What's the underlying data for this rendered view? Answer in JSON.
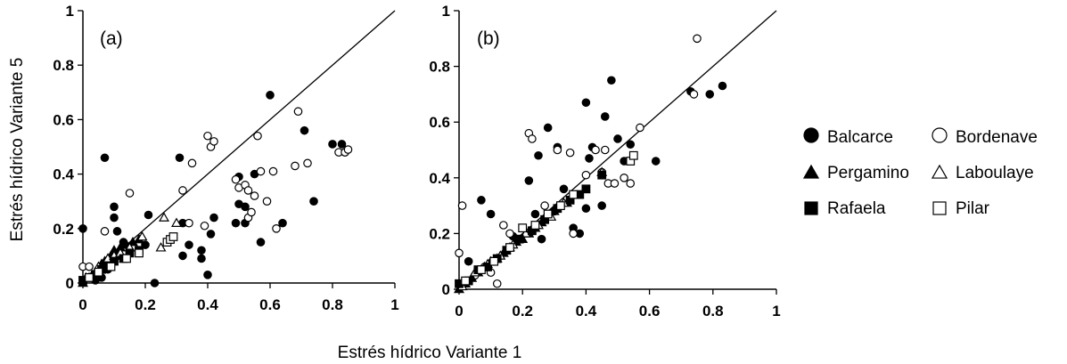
{
  "figure": {
    "ylabel": "Estrés hídrico Variante  5",
    "xlabel": "Estrés hídrico Variante  1"
  },
  "legend": [
    {
      "key": "balcarce",
      "label": "Balcarce",
      "marker": "circle",
      "filled": true
    },
    {
      "key": "bordenave",
      "label": "Bordenave",
      "marker": "circle",
      "filled": false
    },
    {
      "key": "pergamino",
      "label": "Pergamino",
      "marker": "triangle",
      "filled": true
    },
    {
      "key": "laboulaye",
      "label": "Laboulaye",
      "marker": "triangle",
      "filled": false
    },
    {
      "key": "rafaela",
      "label": "Rafaela",
      "marker": "square",
      "filled": true
    },
    {
      "key": "pilar",
      "label": "Pilar",
      "marker": "square",
      "filled": false
    }
  ],
  "chart_data": [
    {
      "type": "scatter",
      "panel_label": "(a)",
      "xlim": [
        0,
        1
      ],
      "ylim": [
        0,
        1
      ],
      "xticks": [
        "0",
        "0.2",
        "0.4",
        "0.6",
        "0.8",
        "1"
      ],
      "yticks": [
        "0",
        "0.2",
        "0.4",
        "0.6",
        "0.8",
        "1"
      ],
      "reference_line": "1:1",
      "grid": false,
      "series": [
        {
          "name": "Balcarce",
          "points": [
            [
              0.0,
              0.2
            ],
            [
              0.07,
              0.46
            ],
            [
              0.1,
              0.28
            ],
            [
              0.1,
              0.24
            ],
            [
              0.11,
              0.19
            ],
            [
              0.11,
              0.1
            ],
            [
              0.13,
              0.15
            ],
            [
              0.2,
              0.14
            ],
            [
              0.21,
              0.25
            ],
            [
              0.23,
              0.0
            ],
            [
              0.31,
              0.46
            ],
            [
              0.32,
              0.22
            ],
            [
              0.32,
              0.1
            ],
            [
              0.34,
              0.14
            ],
            [
              0.38,
              0.09
            ],
            [
              0.38,
              0.12
            ],
            [
              0.4,
              0.03
            ],
            [
              0.41,
              0.18
            ],
            [
              0.42,
              0.24
            ],
            [
              0.49,
              0.22
            ],
            [
              0.5,
              0.39
            ],
            [
              0.5,
              0.29
            ],
            [
              0.52,
              0.28
            ],
            [
              0.52,
              0.22
            ],
            [
              0.55,
              0.4
            ],
            [
              0.57,
              0.15
            ],
            [
              0.6,
              0.69
            ],
            [
              0.64,
              0.22
            ],
            [
              0.71,
              0.56
            ],
            [
              0.74,
              0.3
            ],
            [
              0.8,
              0.51
            ],
            [
              0.83,
              0.51
            ],
            [
              0.84,
              0.48
            ],
            [
              0.06,
              0.02
            ],
            [
              0.08,
              0.05
            ],
            [
              0.04,
              0.01
            ]
          ]
        },
        {
          "name": "Bordenave",
          "points": [
            [
              0.0,
              0.06
            ],
            [
              0.02,
              0.06
            ],
            [
              0.07,
              0.19
            ],
            [
              0.15,
              0.33
            ],
            [
              0.32,
              0.34
            ],
            [
              0.34,
              0.22
            ],
            [
              0.35,
              0.44
            ],
            [
              0.39,
              0.21
            ],
            [
              0.4,
              0.54
            ],
            [
              0.41,
              0.5
            ],
            [
              0.42,
              0.52
            ],
            [
              0.49,
              0.38
            ],
            [
              0.5,
              0.35
            ],
            [
              0.52,
              0.36
            ],
            [
              0.53,
              0.24
            ],
            [
              0.53,
              0.34
            ],
            [
              0.54,
              0.26
            ],
            [
              0.55,
              0.32
            ],
            [
              0.56,
              0.54
            ],
            [
              0.57,
              0.41
            ],
            [
              0.59,
              0.3
            ],
            [
              0.61,
              0.41
            ],
            [
              0.62,
              0.2
            ],
            [
              0.68,
              0.43
            ],
            [
              0.69,
              0.63
            ],
            [
              0.72,
              0.44
            ],
            [
              0.82,
              0.48
            ],
            [
              0.84,
              0.48
            ],
            [
              0.85,
              0.49
            ]
          ]
        },
        {
          "name": "Pergamino",
          "points": [
            [
              0.0,
              0.0
            ],
            [
              0.02,
              0.02
            ],
            [
              0.03,
              0.03
            ],
            [
              0.04,
              0.04
            ],
            [
              0.05,
              0.05
            ],
            [
              0.06,
              0.07
            ],
            [
              0.07,
              0.08
            ],
            [
              0.09,
              0.1
            ],
            [
              0.1,
              0.12
            ],
            [
              0.12,
              0.13
            ],
            [
              0.14,
              0.14
            ],
            [
              0.16,
              0.15
            ],
            [
              0.18,
              0.16
            ]
          ]
        },
        {
          "name": "Laboulaye",
          "points": [
            [
              0.01,
              0.02
            ],
            [
              0.05,
              0.06
            ],
            [
              0.08,
              0.09
            ],
            [
              0.1,
              0.1
            ],
            [
              0.12,
              0.11
            ],
            [
              0.15,
              0.13
            ],
            [
              0.19,
              0.17
            ],
            [
              0.25,
              0.13
            ],
            [
              0.26,
              0.24
            ],
            [
              0.3,
              0.22
            ]
          ]
        },
        {
          "name": "Rafaela",
          "points": [
            [
              0.0,
              0.01
            ],
            [
              0.02,
              0.02
            ],
            [
              0.04,
              0.03
            ],
            [
              0.06,
              0.05
            ],
            [
              0.08,
              0.06
            ],
            [
              0.1,
              0.08
            ],
            [
              0.13,
              0.09
            ],
            [
              0.15,
              0.11
            ],
            [
              0.18,
              0.12
            ]
          ]
        },
        {
          "name": "Pilar",
          "points": [
            [
              0.02,
              0.02
            ],
            [
              0.05,
              0.04
            ],
            [
              0.09,
              0.06
            ],
            [
              0.14,
              0.09
            ],
            [
              0.18,
              0.11
            ],
            [
              0.27,
              0.15
            ],
            [
              0.28,
              0.16
            ],
            [
              0.29,
              0.17
            ]
          ]
        }
      ]
    },
    {
      "type": "scatter",
      "panel_label": "(b)",
      "xlim": [
        0,
        1
      ],
      "ylim": [
        0,
        1
      ],
      "xticks": [
        "0",
        "0.2",
        "0.4",
        "0.6",
        "0.8",
        "1"
      ],
      "yticks": [
        "0",
        "0.2",
        "0.4",
        "0.6",
        "0.8",
        "1"
      ],
      "reference_line": "1:1",
      "grid": false,
      "series": [
        {
          "name": "Balcarce",
          "points": [
            [
              0.03,
              0.1
            ],
            [
              0.07,
              0.32
            ],
            [
              0.1,
              0.27
            ],
            [
              0.17,
              0.19
            ],
            [
              0.22,
              0.39
            ],
            [
              0.24,
              0.27
            ],
            [
              0.25,
              0.48
            ],
            [
              0.26,
              0.18
            ],
            [
              0.28,
              0.58
            ],
            [
              0.3,
              0.28
            ],
            [
              0.31,
              0.51
            ],
            [
              0.33,
              0.36
            ],
            [
              0.36,
              0.22
            ],
            [
              0.38,
              0.2
            ],
            [
              0.4,
              0.29
            ],
            [
              0.41,
              0.47
            ],
            [
              0.4,
              0.67
            ],
            [
              0.42,
              0.51
            ],
            [
              0.45,
              0.3
            ],
            [
              0.46,
              0.62
            ],
            [
              0.48,
              0.75
            ],
            [
              0.5,
              0.54
            ],
            [
              0.52,
              0.46
            ],
            [
              0.54,
              0.52
            ],
            [
              0.55,
              0.48
            ],
            [
              0.62,
              0.46
            ],
            [
              0.73,
              0.71
            ],
            [
              0.79,
              0.7
            ],
            [
              0.83,
              0.73
            ]
          ]
        },
        {
          "name": "Bordenave",
          "points": [
            [
              0.0,
              0.13
            ],
            [
              0.01,
              0.3
            ],
            [
              0.05,
              0.05
            ],
            [
              0.08,
              0.08
            ],
            [
              0.1,
              0.06
            ],
            [
              0.12,
              0.02
            ],
            [
              0.14,
              0.23
            ],
            [
              0.16,
              0.2
            ],
            [
              0.22,
              0.56
            ],
            [
              0.23,
              0.54
            ],
            [
              0.27,
              0.3
            ],
            [
              0.31,
              0.5
            ],
            [
              0.35,
              0.49
            ],
            [
              0.36,
              0.2
            ],
            [
              0.4,
              0.41
            ],
            [
              0.43,
              0.5
            ],
            [
              0.45,
              0.42
            ],
            [
              0.46,
              0.5
            ],
            [
              0.47,
              0.38
            ],
            [
              0.49,
              0.38
            ],
            [
              0.52,
              0.4
            ],
            [
              0.54,
              0.38
            ],
            [
              0.57,
              0.58
            ],
            [
              0.74,
              0.7
            ],
            [
              0.75,
              0.9
            ]
          ]
        },
        {
          "name": "Pergamino",
          "points": [
            [
              0.0,
              0.0
            ],
            [
              0.02,
              0.02
            ],
            [
              0.04,
              0.04
            ],
            [
              0.06,
              0.06
            ],
            [
              0.08,
              0.08
            ],
            [
              0.1,
              0.1
            ],
            [
              0.12,
              0.11
            ],
            [
              0.14,
              0.13
            ],
            [
              0.16,
              0.15
            ],
            [
              0.18,
              0.17
            ],
            [
              0.2,
              0.18
            ],
            [
              0.22,
              0.2
            ],
            [
              0.24,
              0.22
            ],
            [
              0.26,
              0.24
            ],
            [
              0.3,
              0.28
            ],
            [
              0.34,
              0.31
            ]
          ]
        },
        {
          "name": "Laboulaye",
          "points": [
            [
              0.01,
              0.01
            ],
            [
              0.05,
              0.06
            ],
            [
              0.09,
              0.09
            ],
            [
              0.13,
              0.12
            ],
            [
              0.17,
              0.16
            ],
            [
              0.21,
              0.2
            ],
            [
              0.25,
              0.23
            ],
            [
              0.29,
              0.26
            ],
            [
              0.33,
              0.31
            ],
            [
              0.45,
              0.42
            ]
          ]
        },
        {
          "name": "Rafaela",
          "points": [
            [
              0.0,
              0.02
            ],
            [
              0.03,
              0.03
            ],
            [
              0.06,
              0.07
            ],
            [
              0.09,
              0.08
            ],
            [
              0.12,
              0.11
            ],
            [
              0.15,
              0.14
            ],
            [
              0.19,
              0.18
            ],
            [
              0.23,
              0.21
            ],
            [
              0.27,
              0.25
            ],
            [
              0.31,
              0.29
            ],
            [
              0.35,
              0.32
            ],
            [
              0.38,
              0.34
            ],
            [
              0.4,
              0.36
            ],
            [
              0.45,
              0.41
            ]
          ]
        },
        {
          "name": "Pilar",
          "points": [
            [
              0.02,
              0.03
            ],
            [
              0.07,
              0.07
            ],
            [
              0.11,
              0.1
            ],
            [
              0.16,
              0.15
            ],
            [
              0.2,
              0.22
            ],
            [
              0.24,
              0.23
            ],
            [
              0.28,
              0.27
            ],
            [
              0.32,
              0.3
            ],
            [
              0.36,
              0.34
            ],
            [
              0.54,
              0.46
            ],
            [
              0.55,
              0.48
            ]
          ]
        }
      ]
    }
  ]
}
